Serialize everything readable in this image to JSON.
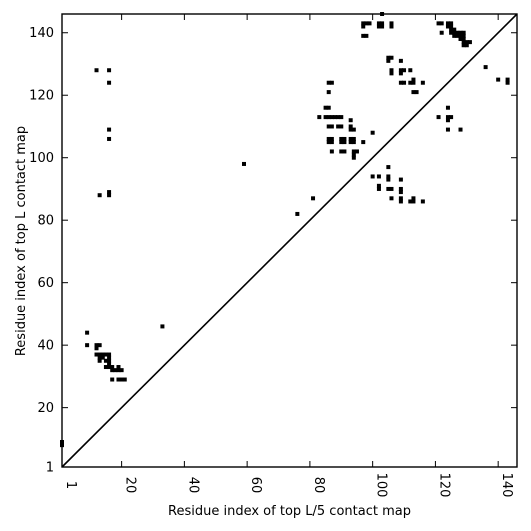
{
  "chart_data": {
    "type": "scatter",
    "title": "",
    "xlabel": "Residue index of top L/5 contact map",
    "ylabel": "Residue index of top L contact map",
    "xlim": [
      1,
      146
    ],
    "ylim": [
      1,
      146
    ],
    "xticks": [
      1,
      20,
      40,
      60,
      80,
      100,
      120,
      140
    ],
    "yticks": [
      1,
      20,
      40,
      60,
      80,
      100,
      120,
      140
    ],
    "x_tick_rotation": "vertical",
    "grid": false,
    "legend": "none",
    "diagonal": {
      "from": [
        1,
        1
      ],
      "to": [
        146,
        146
      ],
      "color": "#000000"
    },
    "marker": {
      "shape": "square",
      "color": "#000000"
    },
    "points_upper": [
      [
        12,
        128
      ],
      [
        16,
        128
      ],
      [
        16,
        124
      ],
      [
        16,
        109
      ],
      [
        16,
        106
      ],
      [
        13,
        88
      ],
      [
        16,
        88
      ],
      [
        16,
        89
      ],
      [
        59,
        98
      ],
      [
        76,
        82
      ],
      [
        81,
        87
      ],
      [
        86,
        124
      ],
      [
        87,
        124
      ],
      [
        86,
        121
      ],
      [
        85,
        116
      ],
      [
        86,
        116
      ],
      [
        85,
        113
      ],
      [
        86,
        113
      ],
      [
        87,
        113
      ],
      [
        88,
        113
      ],
      [
        83,
        113
      ],
      [
        86,
        110
      ],
      [
        87,
        110
      ],
      [
        86,
        106
      ],
      [
        87,
        106
      ],
      [
        86,
        105
      ],
      [
        87,
        105
      ],
      [
        87,
        102
      ],
      [
        89,
        113
      ],
      [
        90,
        113
      ],
      [
        89,
        110
      ],
      [
        90,
        110
      ],
      [
        90,
        106
      ],
      [
        91,
        106
      ],
      [
        90,
        105
      ],
      [
        91,
        105
      ],
      [
        90,
        102
      ],
      [
        91,
        102
      ],
      [
        93,
        112
      ],
      [
        93,
        110
      ],
      [
        93,
        109
      ],
      [
        94,
        109
      ],
      [
        93,
        106
      ],
      [
        94,
        106
      ],
      [
        93,
        105
      ],
      [
        94,
        105
      ],
      [
        94,
        102
      ],
      [
        95,
        102
      ],
      [
        94,
        101
      ],
      [
        94,
        100
      ],
      [
        97,
        105
      ],
      [
        97,
        143
      ],
      [
        98,
        143
      ],
      [
        99,
        143
      ],
      [
        97,
        142
      ],
      [
        97,
        139
      ],
      [
        98,
        139
      ],
      [
        102,
        142
      ],
      [
        103,
        142
      ],
      [
        102,
        143
      ],
      [
        103,
        143
      ],
      [
        103,
        146
      ],
      [
        106,
        143
      ],
      [
        106,
        142
      ],
      [
        105,
        132
      ],
      [
        106,
        132
      ],
      [
        105,
        131
      ],
      [
        106,
        128
      ],
      [
        106,
        127
      ],
      [
        109,
        131
      ],
      [
        109,
        128
      ],
      [
        110,
        128
      ],
      [
        109,
        127
      ],
      [
        112,
        128
      ],
      [
        109,
        124
      ],
      [
        110,
        124
      ],
      [
        112,
        124
      ],
      [
        113,
        124
      ],
      [
        113,
        125
      ],
      [
        113,
        121
      ],
      [
        114,
        121
      ],
      [
        116,
        124
      ],
      [
        100,
        108
      ],
      [
        100,
        94
      ],
      [
        102,
        94
      ],
      [
        102,
        91
      ],
      [
        102,
        90
      ],
      [
        105,
        97
      ],
      [
        105,
        94
      ],
      [
        105,
        93
      ],
      [
        105,
        90
      ],
      [
        106,
        90
      ],
      [
        106,
        87
      ],
      [
        109,
        93
      ],
      [
        109,
        90
      ],
      [
        109,
        89
      ],
      [
        109,
        87
      ],
      [
        109,
        86
      ],
      [
        112,
        86
      ],
      [
        113,
        86
      ],
      [
        113,
        87
      ],
      [
        116,
        86
      ],
      [
        121,
        143
      ],
      [
        122,
        143
      ],
      [
        122,
        140
      ],
      [
        121,
        113
      ],
      [
        124,
        143
      ],
      [
        125,
        143
      ],
      [
        124,
        142
      ],
      [
        125,
        142
      ],
      [
        125,
        141
      ],
      [
        126,
        141
      ],
      [
        125,
        140
      ],
      [
        126,
        140
      ],
      [
        127,
        140
      ],
      [
        128,
        140
      ],
      [
        129,
        140
      ],
      [
        126,
        139
      ],
      [
        127,
        139
      ],
      [
        128,
        139
      ],
      [
        129,
        139
      ],
      [
        128,
        138
      ],
      [
        129,
        138
      ],
      [
        129,
        137
      ],
      [
        130,
        137
      ],
      [
        131,
        137
      ],
      [
        129,
        136
      ],
      [
        130,
        136
      ],
      [
        124,
        116
      ],
      [
        124,
        113
      ],
      [
        125,
        113
      ],
      [
        124,
        112
      ],
      [
        124,
        109
      ],
      [
        128,
        109
      ],
      [
        136,
        129
      ],
      [
        140,
        125
      ],
      [
        143,
        125
      ],
      [
        143,
        124
      ]
    ],
    "points_lower": [
      [
        1,
        9
      ],
      [
        1,
        8
      ],
      [
        9,
        44
      ],
      [
        9,
        40
      ],
      [
        12,
        40
      ],
      [
        13,
        40
      ],
      [
        12,
        39
      ],
      [
        12,
        37
      ],
      [
        13,
        37
      ],
      [
        14,
        37
      ],
      [
        15,
        37
      ],
      [
        16,
        37
      ],
      [
        13,
        36
      ],
      [
        14,
        36
      ],
      [
        16,
        36
      ],
      [
        13,
        35
      ],
      [
        15,
        35
      ],
      [
        16,
        35
      ],
      [
        16,
        34
      ],
      [
        15,
        33
      ],
      [
        16,
        33
      ],
      [
        17,
        33
      ],
      [
        17,
        32
      ],
      [
        18,
        32
      ],
      [
        19,
        32
      ],
      [
        19,
        33
      ],
      [
        20,
        32
      ],
      [
        17,
        29
      ],
      [
        19,
        29
      ],
      [
        20,
        29
      ],
      [
        21,
        29
      ],
      [
        33,
        46
      ]
    ]
  }
}
